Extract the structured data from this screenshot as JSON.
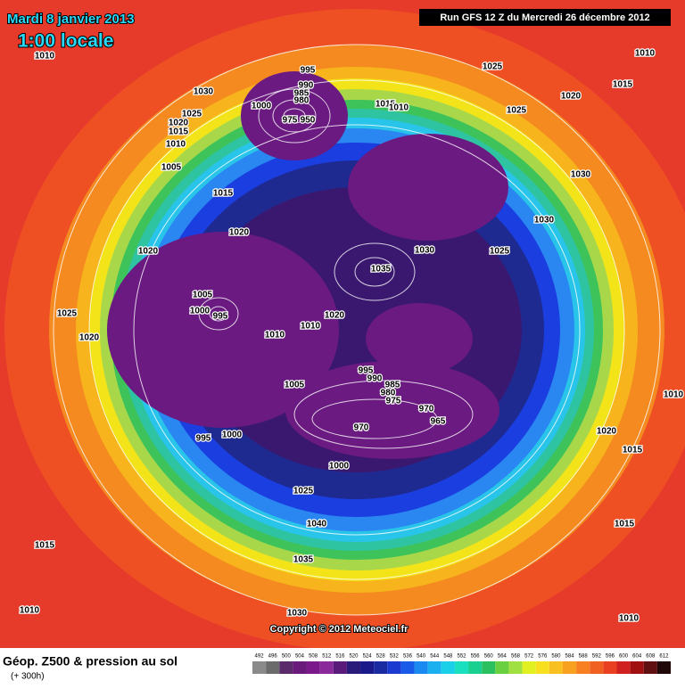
{
  "header": {
    "date": "Mardi 8 janvier 2013",
    "time": "1:00 locale",
    "run": "Run GFS 12 Z du Mercredi 26 décembre 2012"
  },
  "pressure_labels": [
    "1010",
    "1030",
    "1025",
    "1020",
    "1015",
    "1010",
    "1005",
    "1000",
    "995",
    "990",
    "985",
    "980",
    "975",
    "950",
    "1015",
    "1020",
    "1020",
    "1025",
    "1020",
    "1005",
    "1000",
    "995",
    "1010",
    "1010",
    "1020",
    "1035",
    "1030",
    "1025",
    "1030",
    "1030",
    "1025",
    "1025",
    "1020",
    "1010",
    "1015",
    "1015",
    "1010",
    "995",
    "990",
    "985",
    "980",
    "975",
    "970",
    "965",
    "970",
    "1005",
    "995",
    "1000",
    "1000",
    "1025",
    "1040",
    "1035",
    "1030",
    "1015",
    "1010",
    "1020",
    "1015",
    "1015",
    "1010",
    "1010"
  ],
  "copyright": "Copyright © 2012 Meteociel.fr",
  "footer": {
    "title": "Géop. Z500 & pression au sol",
    "subtitle": "(+ 300h)"
  },
  "colorbar": {
    "ticks": [
      492,
      496,
      500,
      504,
      508,
      512,
      516,
      520,
      524,
      528,
      532,
      536,
      540,
      544,
      548,
      552,
      556,
      560,
      564,
      568,
      572,
      576,
      580,
      584,
      588,
      592,
      596,
      600,
      604,
      608,
      612
    ],
    "colors": [
      "#8a8a8a",
      "#6b6b6b",
      "#5a2a6a",
      "#6a1a7a",
      "#7a1a8a",
      "#8a2a9a",
      "#5a1a7a",
      "#2a1a7a",
      "#1a1a8a",
      "#1a2aa0",
      "#1a3ad0",
      "#1a5ae8",
      "#1a8af0",
      "#1ab0f0",
      "#1ad0e8",
      "#1ae0c0",
      "#1ad090",
      "#2ac060",
      "#6ad040",
      "#a0e040",
      "#e0f020",
      "#f8e020",
      "#f8c020",
      "#f8a020",
      "#f88020",
      "#f06020",
      "#e84020",
      "#d02020",
      "#a01010",
      "#601010",
      "#200808"
    ]
  }
}
